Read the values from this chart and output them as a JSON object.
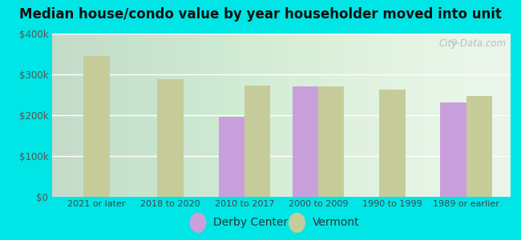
{
  "title": "Median house/condo value by year householder moved into unit",
  "categories": [
    "2021 or later",
    "2018 to 2020",
    "2010 to 2017",
    "2000 to 2009",
    "1990 to 1999",
    "1989 or earlier"
  ],
  "derby_center": [
    null,
    null,
    197000,
    270000,
    null,
    232000
  ],
  "vermont": [
    345000,
    288000,
    273000,
    270000,
    262000,
    247000
  ],
  "derby_color": "#c9a0dc",
  "vermont_color": "#c5cc9a",
  "background_outer": "#00e5e5",
  "background_inner_left": "#e8f5e8",
  "background_inner_right": "#f8fff8",
  "ylim": [
    0,
    400000
  ],
  "yticks": [
    0,
    100000,
    200000,
    300000,
    400000
  ],
  "ytick_labels": [
    "$0",
    "$100k",
    "$200k",
    "$300k",
    "$400k"
  ],
  "bar_width": 0.35,
  "legend_derby": "Derby Center",
  "legend_vermont": "Vermont",
  "watermark": "City-Data.com"
}
